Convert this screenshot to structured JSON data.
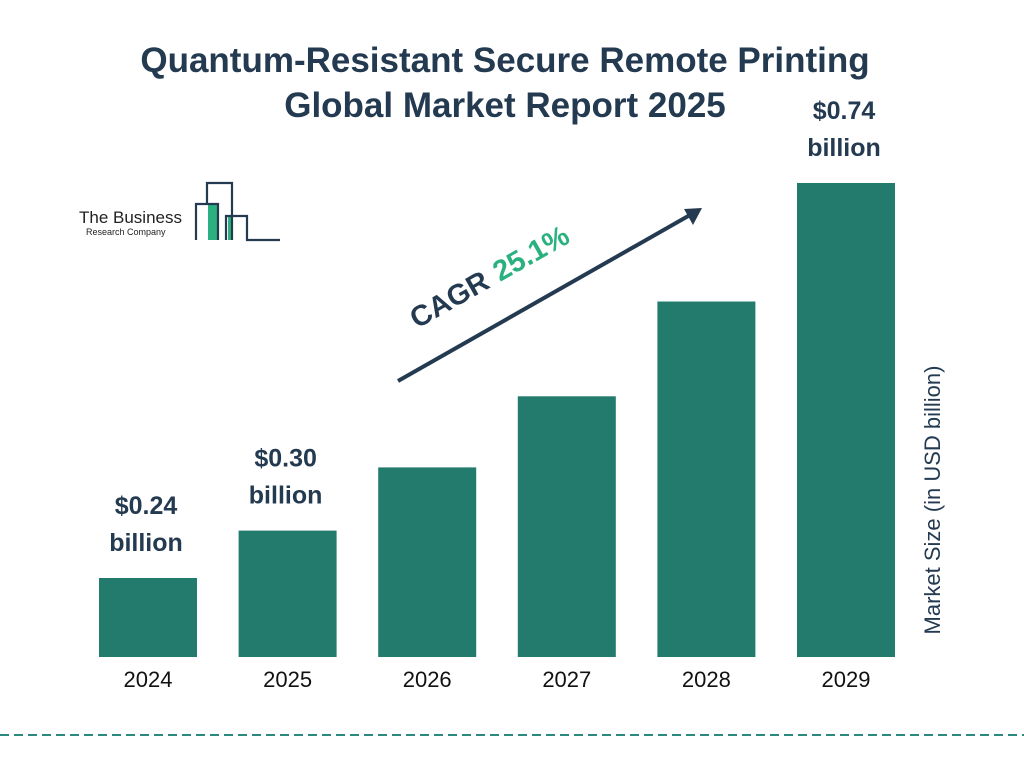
{
  "title_lines": [
    "Quantum-Resistant Secure Remote Printing",
    "Global Market Report 2025"
  ],
  "logo": {
    "line1": "The Business",
    "line2": "Research Company"
  },
  "colors": {
    "bar": "#227b6c",
    "title": "#243a51",
    "accent": "#2bb17f",
    "dash": "#2a8a7f"
  },
  "cagr": {
    "label": "CAGR",
    "value": "25.1%"
  },
  "chart_data": {
    "type": "bar",
    "categories": [
      "2024",
      "2025",
      "2026",
      "2027",
      "2028",
      "2029"
    ],
    "values": [
      0.24,
      0.3,
      0.38,
      0.47,
      0.59,
      0.74
    ],
    "data_labels": [
      {
        "index": 0,
        "line1": "$0.24",
        "line2": "billion"
      },
      {
        "index": 1,
        "line1": "$0.30",
        "line2": "billion"
      },
      {
        "index": 5,
        "line1": "$0.74",
        "line2": "billion"
      }
    ],
    "ylabel": "Market Size (in USD billion)",
    "xlabel": "",
    "grid": false
  }
}
